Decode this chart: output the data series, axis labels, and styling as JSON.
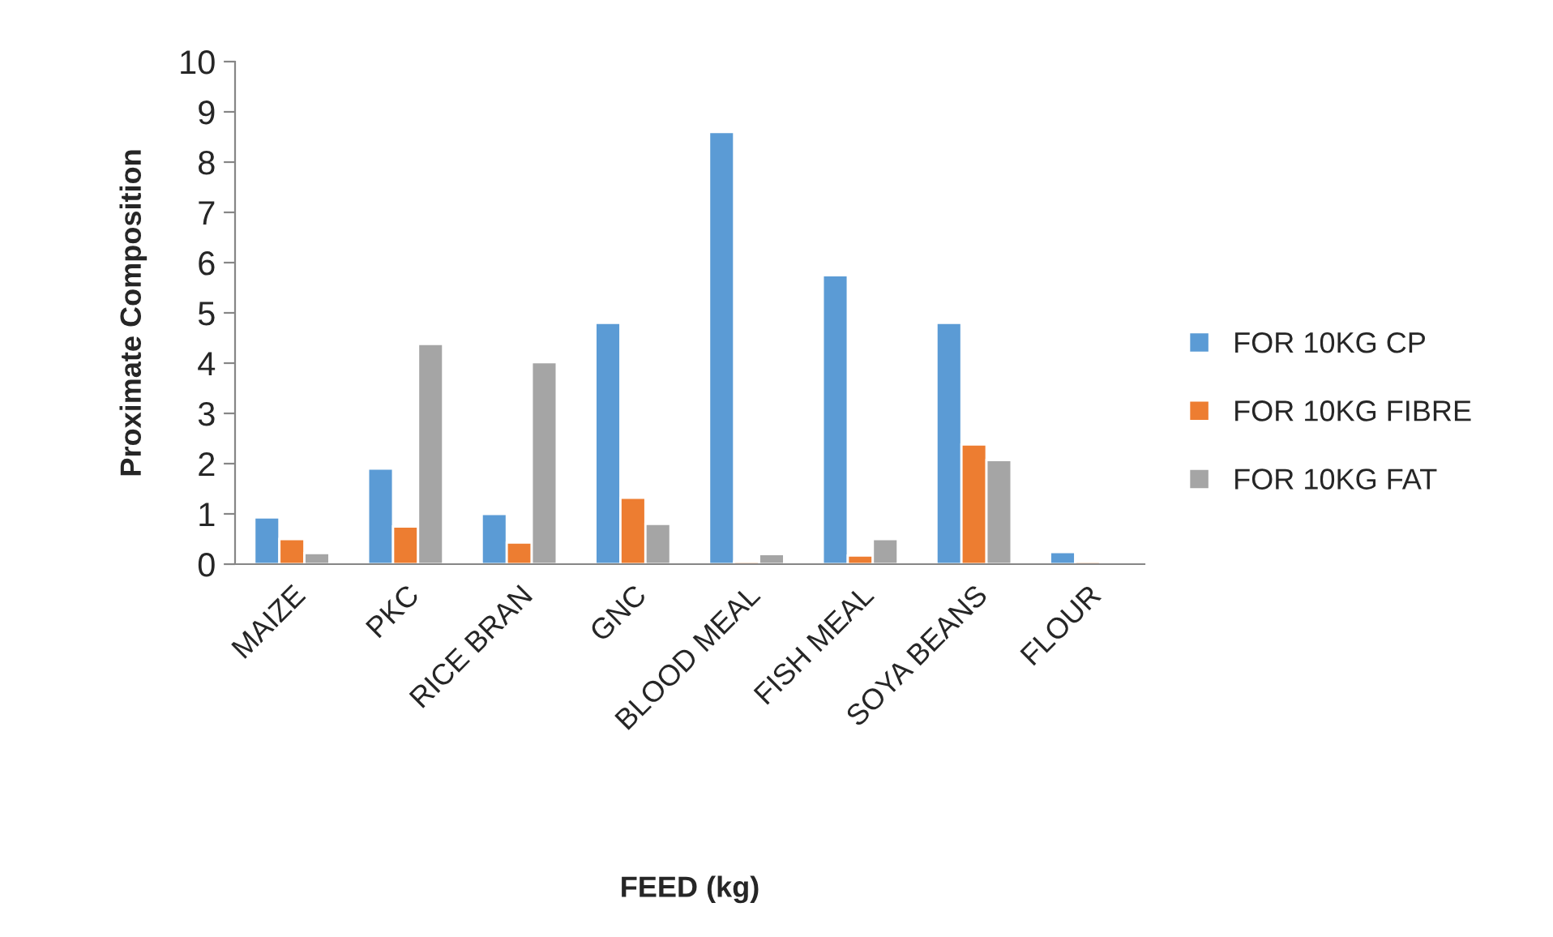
{
  "chart_data": {
    "type": "bar",
    "xlabel": "FEED (kg)",
    "ylabel": "Proximate Composition",
    "categories": [
      "MAIZE",
      "PKC",
      "RICE BRAN",
      "GNC",
      "BLOOD MEAL",
      "FISH MEAL",
      "SOYA BEANS",
      "FLOUR"
    ],
    "series": [
      {
        "name": "FOR 10KG CP",
        "color": "#5b9bd5",
        "values": [
          0.93,
          1.9,
          1.0,
          4.8,
          8.6,
          5.75,
          4.8,
          0.24
        ]
      },
      {
        "name": "FOR 10KG FIBRE",
        "color": "#ed7d31",
        "values": [
          0.5,
          0.75,
          0.43,
          1.32,
          0.05,
          0.17,
          2.38,
          0.05
        ]
      },
      {
        "name": "FOR 10KG FAT",
        "color": "#a5a5a5",
        "values": [
          0.22,
          4.38,
          4.02,
          0.8,
          0.2,
          0.5,
          2.07,
          0.03
        ]
      }
    ],
    "ylim": [
      0,
      10
    ],
    "yticks": [
      0,
      1,
      2,
      3,
      4,
      5,
      6,
      7,
      8,
      9,
      10
    ],
    "grid": false,
    "legend": "right"
  }
}
